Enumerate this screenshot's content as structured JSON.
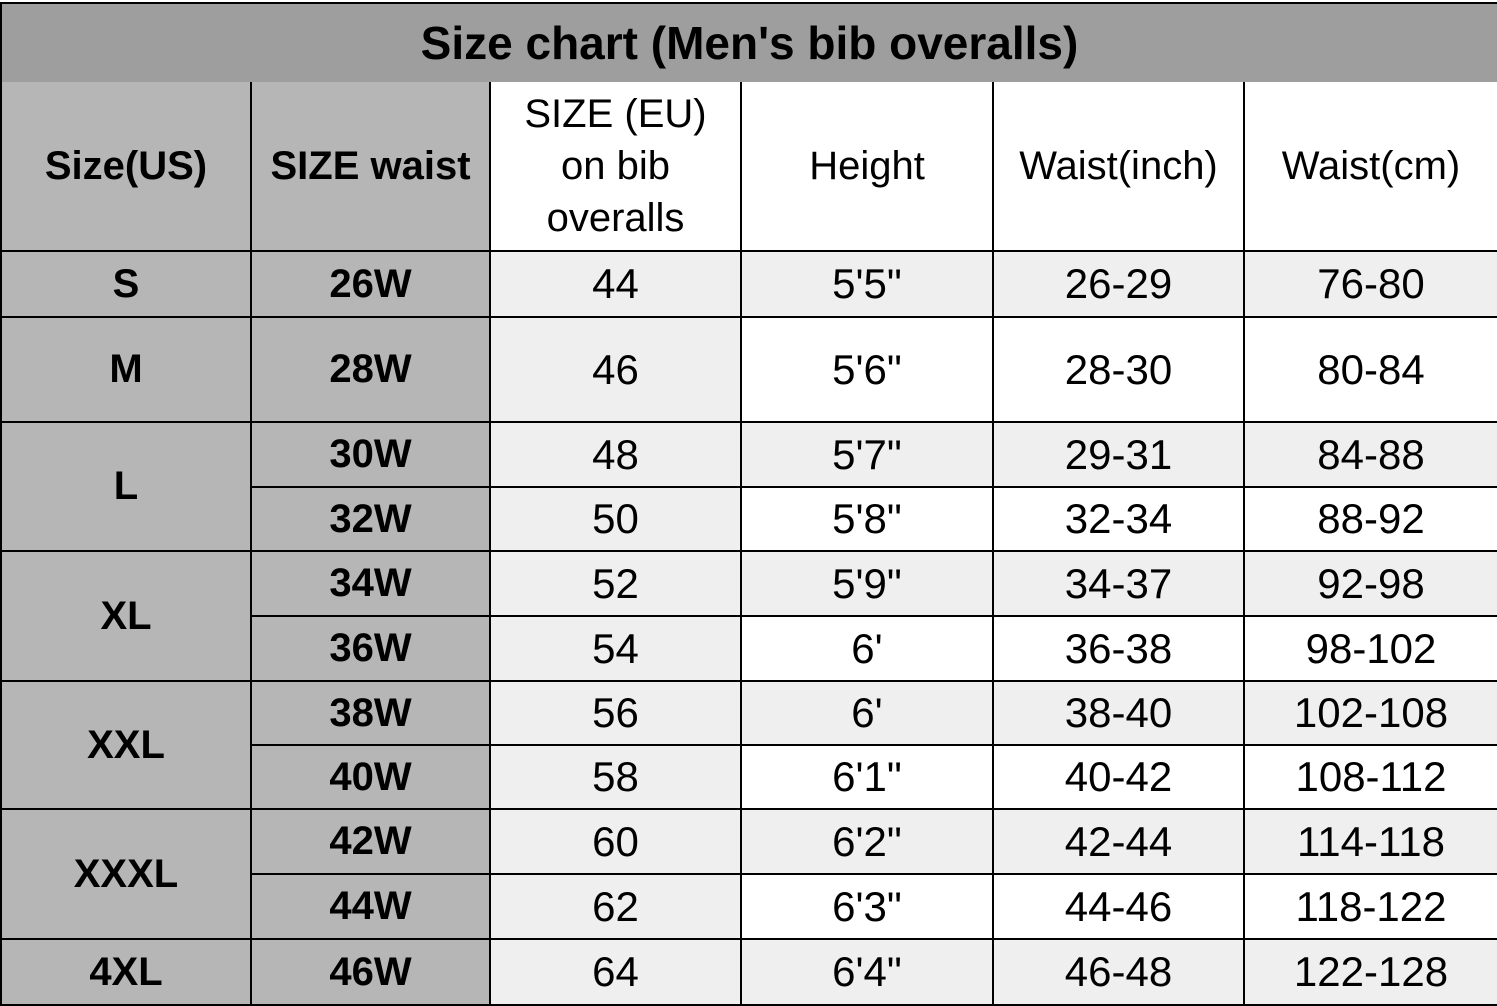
{
  "table": {
    "title": "Size chart (Men's bib overalls)",
    "headers": [
      "Size(US)",
      "SIZE waist",
      "SIZE (EU) on bib overalls",
      "Height",
      "Waist(inch)",
      "Waist(cm)"
    ],
    "groups": [
      {
        "size": "S",
        "rows": [
          [
            "26W",
            "44",
            "5'5\"",
            "26-29",
            "76-80"
          ]
        ]
      },
      {
        "size": "M",
        "rows": [
          [
            "28W",
            "46",
            "5'6\"",
            "28-30",
            "80-84"
          ]
        ]
      },
      {
        "size": "L",
        "rows": [
          [
            "30W",
            "48",
            "5'7\"",
            "29-31",
            "84-88"
          ],
          [
            "32W",
            "50",
            "5'8\"",
            "32-34",
            "88-92"
          ]
        ]
      },
      {
        "size": "XL",
        "rows": [
          [
            "34W",
            "52",
            "5'9\"",
            "34-37",
            "92-98"
          ],
          [
            "36W",
            "54",
            "6'",
            "36-38",
            "98-102"
          ]
        ]
      },
      {
        "size": "XXL",
        "rows": [
          [
            "38W",
            "56",
            "6'",
            "38-40",
            "102-108"
          ],
          [
            "40W",
            "58",
            "6'1\"",
            "40-42",
            "108-112"
          ]
        ]
      },
      {
        "size": "XXXL",
        "rows": [
          [
            "42W",
            "60",
            "6'2\"",
            "42-44",
            "114-118"
          ],
          [
            "44W",
            "62",
            "6'3\"",
            "44-46",
            "118-122"
          ]
        ]
      },
      {
        "size": "4XL",
        "rows": [
          [
            "46W",
            "64",
            "6'4\"",
            "46-48",
            "122-128"
          ]
        ]
      }
    ]
  }
}
